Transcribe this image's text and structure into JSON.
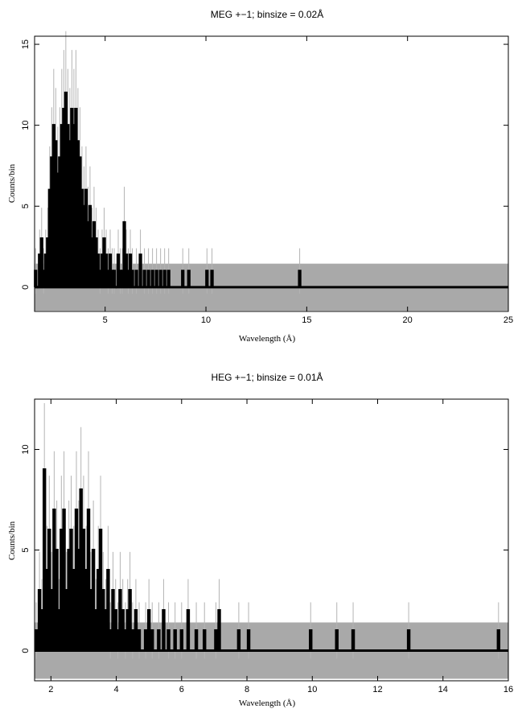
{
  "chart_data": [
    {
      "type": "histogram",
      "title": "MEG +−1; binsize = 0.02Å",
      "xlabel": "Wavelength (Å)",
      "ylabel": "Counts/bin",
      "xlim": [
        1.5,
        25
      ],
      "ylim": [
        -1.5,
        15.5
      ],
      "xticks": [
        5,
        10,
        15,
        20,
        25
      ],
      "yticks": [
        0,
        5,
        10,
        15
      ],
      "band": [
        -1.45,
        1.45
      ],
      "bins": [
        [
          1.55,
          1
        ],
        [
          1.65,
          0
        ],
        [
          1.75,
          2
        ],
        [
          1.85,
          3
        ],
        [
          1.95,
          1
        ],
        [
          2.05,
          2
        ],
        [
          2.15,
          3
        ],
        [
          2.25,
          6
        ],
        [
          2.35,
          8
        ],
        [
          2.45,
          10
        ],
        [
          2.55,
          9
        ],
        [
          2.65,
          7
        ],
        [
          2.75,
          8
        ],
        [
          2.85,
          10
        ],
        [
          2.95,
          11
        ],
        [
          3.05,
          12
        ],
        [
          3.15,
          10
        ],
        [
          3.25,
          9
        ],
        [
          3.35,
          11
        ],
        [
          3.45,
          10
        ],
        [
          3.55,
          11
        ],
        [
          3.65,
          9
        ],
        [
          3.75,
          8
        ],
        [
          3.85,
          6
        ],
        [
          3.95,
          5
        ],
        [
          4.05,
          6
        ],
        [
          4.15,
          4
        ],
        [
          4.25,
          5
        ],
        [
          4.35,
          3
        ],
        [
          4.45,
          4
        ],
        [
          4.55,
          3
        ],
        [
          4.65,
          2
        ],
        [
          4.75,
          1
        ],
        [
          4.85,
          2
        ],
        [
          4.95,
          3
        ],
        [
          5.05,
          2
        ],
        [
          5.15,
          1
        ],
        [
          5.25,
          2
        ],
        [
          5.35,
          1
        ],
        [
          5.45,
          1
        ],
        [
          5.55,
          0
        ],
        [
          5.65,
          2
        ],
        [
          5.75,
          1
        ],
        [
          5.85,
          1
        ],
        [
          5.95,
          4
        ],
        [
          6.05,
          2
        ],
        [
          6.15,
          1
        ],
        [
          6.25,
          2
        ],
        [
          6.35,
          1
        ],
        [
          6.55,
          1
        ],
        [
          6.75,
          2
        ],
        [
          6.95,
          1
        ],
        [
          7.15,
          1
        ],
        [
          7.35,
          1
        ],
        [
          7.55,
          1
        ],
        [
          7.75,
          1
        ],
        [
          7.95,
          1
        ],
        [
          8.15,
          1
        ],
        [
          8.85,
          1
        ],
        [
          9.15,
          1
        ],
        [
          10.05,
          1
        ],
        [
          10.3,
          1
        ],
        [
          14.65,
          1
        ]
      ]
    },
    {
      "type": "histogram",
      "title": "HEG +−1; binsize = 0.01Å",
      "xlabel": "Wavelength (Å)",
      "ylabel": "Counts/bin",
      "xlim": [
        1.5,
        16
      ],
      "ylim": [
        -1.5,
        12.5
      ],
      "xticks": [
        2,
        4,
        6,
        8,
        10,
        12,
        14,
        16
      ],
      "yticks": [
        0,
        5,
        10
      ],
      "band": [
        -1.4,
        1.4
      ],
      "bins": [
        [
          1.55,
          1
        ],
        [
          1.65,
          3
        ],
        [
          1.72,
          2
        ],
        [
          1.8,
          9
        ],
        [
          1.88,
          4
        ],
        [
          1.95,
          6
        ],
        [
          2.02,
          3
        ],
        [
          2.1,
          7
        ],
        [
          2.18,
          5
        ],
        [
          2.25,
          2
        ],
        [
          2.32,
          6
        ],
        [
          2.4,
          7
        ],
        [
          2.48,
          3
        ],
        [
          2.55,
          5
        ],
        [
          2.62,
          6
        ],
        [
          2.7,
          4
        ],
        [
          2.78,
          7
        ],
        [
          2.85,
          5
        ],
        [
          2.92,
          8
        ],
        [
          3.0,
          6
        ],
        [
          3.08,
          4
        ],
        [
          3.15,
          7
        ],
        [
          3.22,
          3
        ],
        [
          3.3,
          5
        ],
        [
          3.38,
          2
        ],
        [
          3.45,
          4
        ],
        [
          3.52,
          6
        ],
        [
          3.6,
          3
        ],
        [
          3.68,
          2
        ],
        [
          3.75,
          4
        ],
        [
          3.82,
          1
        ],
        [
          3.9,
          3
        ],
        [
          3.98,
          2
        ],
        [
          4.05,
          1
        ],
        [
          4.12,
          3
        ],
        [
          4.2,
          2
        ],
        [
          4.28,
          1
        ],
        [
          4.35,
          2
        ],
        [
          4.42,
          3
        ],
        [
          4.5,
          1
        ],
        [
          4.6,
          2
        ],
        [
          4.7,
          1
        ],
        [
          4.8,
          0
        ],
        [
          4.9,
          1
        ],
        [
          5.0,
          2
        ],
        [
          5.1,
          1
        ],
        [
          5.2,
          0
        ],
        [
          5.3,
          1
        ],
        [
          5.45,
          2
        ],
        [
          5.6,
          1
        ],
        [
          5.8,
          1
        ],
        [
          6.0,
          1
        ],
        [
          6.2,
          2
        ],
        [
          6.45,
          1
        ],
        [
          6.7,
          1
        ],
        [
          7.05,
          1
        ],
        [
          7.15,
          2
        ],
        [
          7.75,
          1
        ],
        [
          8.05,
          1
        ],
        [
          9.95,
          1
        ],
        [
          10.75,
          1
        ],
        [
          11.25,
          1
        ],
        [
          12.95,
          1
        ],
        [
          15.7,
          1
        ]
      ]
    }
  ]
}
